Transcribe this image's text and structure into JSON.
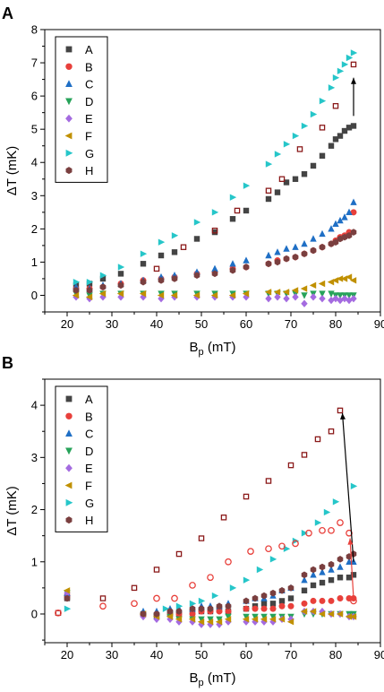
{
  "chart_data": [
    {
      "panel": "A",
      "type": "scatter",
      "xlabel": "B",
      "xlabel_sub": "p",
      "xlabel_unit": " (mT)",
      "ylabel": "ΔT (mK)",
      "xlim": [
        15,
        90
      ],
      "ylim": [
        -0.5,
        8
      ],
      "xticks": [
        20,
        30,
        40,
        50,
        60,
        70,
        80,
        90
      ],
      "yticks": [
        0,
        1,
        2,
        3,
        4,
        5,
        6,
        7,
        8
      ],
      "legend": "top-left",
      "series": [
        {
          "name": "A",
          "marker": "square",
          "color": "#444444",
          "x": [
            22,
            25,
            28,
            32,
            37,
            41,
            44,
            49,
            53,
            57,
            60,
            65,
            67,
            69,
            71,
            73,
            75,
            77,
            79,
            80,
            81,
            82,
            83,
            84
          ],
          "y": [
            0.3,
            0.35,
            0.5,
            0.65,
            0.95,
            1.2,
            1.3,
            1.7,
            1.9,
            2.3,
            2.55,
            2.9,
            3.1,
            3.4,
            3.5,
            3.65,
            3.9,
            4.2,
            4.5,
            4.7,
            4.8,
            4.95,
            5.05,
            5.1
          ]
        },
        {
          "name": "B",
          "marker": "circle",
          "color": "#e8403b",
          "x": [
            22,
            25,
            28,
            32,
            37,
            41,
            44,
            49,
            53,
            57,
            60,
            65,
            67,
            69,
            71,
            73,
            75,
            77,
            79,
            80,
            81,
            82,
            83,
            84
          ],
          "y": [
            0.2,
            0.2,
            0.25,
            0.35,
            0.45,
            0.5,
            0.55,
            0.65,
            0.7,
            0.8,
            0.85,
            0.95,
            1.05,
            1.1,
            1.15,
            1.25,
            1.35,
            1.45,
            1.55,
            1.65,
            1.75,
            1.8,
            1.9,
            2.5
          ]
        },
        {
          "name": "C",
          "marker": "triangle-up",
          "color": "#1f6fc5",
          "x": [
            22,
            25,
            28,
            32,
            37,
            41,
            44,
            49,
            53,
            57,
            60,
            65,
            67,
            69,
            71,
            73,
            75,
            77,
            79,
            80,
            81,
            82,
            83,
            84
          ],
          "y": [
            0.25,
            0.2,
            0.3,
            0.35,
            0.45,
            0.55,
            0.6,
            0.7,
            0.8,
            0.95,
            1.05,
            1.2,
            1.3,
            1.4,
            1.45,
            1.55,
            1.7,
            1.85,
            2.0,
            2.15,
            2.25,
            2.35,
            2.5,
            2.8
          ]
        },
        {
          "name": "D",
          "marker": "triangle-down",
          "color": "#27a35a",
          "x": [
            22,
            25,
            28,
            32,
            37,
            41,
            44,
            49,
            53,
            57,
            60,
            65,
            67,
            69,
            71,
            73,
            75,
            77,
            79,
            80,
            81,
            82,
            83,
            84
          ],
          "y": [
            0.05,
            0.0,
            0.05,
            0.05,
            0.05,
            0.05,
            0.05,
            0.05,
            0.05,
            0.05,
            0.05,
            0.05,
            0.05,
            0.05,
            0.05,
            0.0,
            0.05,
            0.05,
            0.05,
            0.0,
            0.0,
            0.0,
            0.0,
            0.0
          ]
        },
        {
          "name": "E",
          "marker": "diamond",
          "color": "#a46be0",
          "x": [
            22,
            25,
            28,
            32,
            37,
            41,
            44,
            49,
            53,
            57,
            60,
            65,
            67,
            69,
            71,
            73,
            75,
            77,
            79,
            80,
            81,
            82,
            83,
            84
          ],
          "y": [
            -0.05,
            -0.1,
            -0.05,
            -0.05,
            -0.05,
            -0.1,
            -0.05,
            -0.05,
            -0.05,
            -0.05,
            -0.05,
            -0.1,
            -0.05,
            -0.1,
            -0.05,
            -0.25,
            -0.05,
            -0.1,
            -0.15,
            -0.1,
            -0.15,
            -0.1,
            -0.15,
            -0.1
          ]
        },
        {
          "name": "F",
          "marker": "triangle-left",
          "color": "#c09000",
          "x": [
            22,
            25,
            28,
            32,
            37,
            41,
            44,
            49,
            53,
            57,
            60,
            65,
            67,
            69,
            71,
            73,
            75,
            77,
            79,
            80,
            81,
            82,
            83,
            84
          ],
          "y": [
            0.0,
            -0.05,
            0.05,
            0.05,
            0.05,
            0.0,
            0.0,
            0.0,
            0.0,
            0.0,
            0.05,
            0.1,
            0.1,
            0.1,
            0.15,
            0.2,
            0.3,
            0.35,
            0.4,
            0.45,
            0.5,
            0.5,
            0.55,
            0.45
          ]
        },
        {
          "name": "G",
          "marker": "triangle-right",
          "color": "#26c6c9",
          "x": [
            22,
            25,
            28,
            32,
            37,
            41,
            44,
            49,
            53,
            57,
            60,
            65,
            67,
            69,
            71,
            73,
            75,
            77,
            79,
            80,
            81,
            82,
            83,
            84
          ],
          "y": [
            0.4,
            0.4,
            0.6,
            0.85,
            1.25,
            1.6,
            1.8,
            2.2,
            2.5,
            2.95,
            3.3,
            3.95,
            4.25,
            4.55,
            4.8,
            5.1,
            5.45,
            5.85,
            6.25,
            6.55,
            6.75,
            6.95,
            7.15,
            7.3
          ]
        },
        {
          "name": "H",
          "marker": "hexagon",
          "color": "#7a3f3f",
          "x": [
            22,
            25,
            28,
            32,
            37,
            41,
            44,
            49,
            53,
            57,
            60,
            65,
            67,
            69,
            71,
            73,
            75,
            77,
            79,
            80,
            81,
            82,
            83,
            84
          ],
          "y": [
            0.15,
            0.15,
            0.25,
            0.3,
            0.4,
            0.45,
            0.5,
            0.6,
            0.65,
            0.75,
            0.85,
            0.95,
            1.0,
            1.1,
            1.15,
            1.25,
            1.35,
            1.45,
            1.55,
            1.6,
            1.7,
            1.75,
            1.8,
            1.9
          ]
        },
        {
          "name": "",
          "marker": "open-square",
          "color": "#8b1a1a",
          "x": [
            40,
            46,
            53,
            58,
            65,
            68,
            72,
            77,
            80,
            84
          ],
          "y": [
            0.8,
            1.45,
            1.95,
            2.55,
            3.15,
            3.5,
            4.4,
            5.05,
            5.7,
            6.95
          ]
        }
      ],
      "arrows": [
        {
          "x": 84,
          "y_from": 5.4,
          "y_to": 6.55,
          "color": "#000000"
        }
      ]
    },
    {
      "panel": "B",
      "type": "scatter",
      "xlabel": "B",
      "xlabel_sub": "p",
      "xlabel_unit": " (mT)",
      "ylabel": "ΔT (mK)",
      "xlim": [
        15,
        90
      ],
      "ylim": [
        -0.55,
        4.5
      ],
      "xticks": [
        20,
        30,
        40,
        50,
        60,
        70,
        80,
        90
      ],
      "yticks": [
        0,
        1,
        2,
        3,
        4
      ],
      "legend": "top-left",
      "series": [
        {
          "name": "A",
          "marker": "square",
          "color": "#444444",
          "x": [
            20,
            37,
            40,
            43,
            45,
            48,
            50,
            52,
            54,
            56,
            60,
            62,
            64,
            66,
            68,
            70,
            73,
            75,
            77,
            79,
            81,
            83,
            84
          ],
          "y": [
            0.3,
            0.0,
            -0.05,
            0.0,
            0.0,
            0.05,
            0.05,
            0.05,
            0.1,
            0.05,
            0.1,
            0.15,
            0.2,
            0.2,
            0.25,
            0.3,
            0.45,
            0.55,
            0.6,
            0.65,
            0.7,
            0.7,
            0.75
          ]
        },
        {
          "name": "B",
          "marker": "circle",
          "color": "#e8403b",
          "x": [
            20,
            37,
            40,
            43,
            45,
            48,
            50,
            52,
            54,
            56,
            60,
            62,
            64,
            66,
            68,
            70,
            73,
            75,
            77,
            79,
            81,
            83,
            84
          ],
          "y": [
            0.35,
            0.0,
            0.0,
            0.0,
            0.0,
            0.0,
            0.05,
            0.05,
            0.05,
            0.05,
            0.1,
            0.1,
            0.1,
            0.1,
            0.15,
            0.15,
            0.2,
            0.25,
            0.25,
            0.25,
            0.3,
            0.3,
            0.3
          ]
        },
        {
          "name": "C",
          "marker": "triangle-up",
          "color": "#1f6fc5",
          "x": [
            20,
            37,
            40,
            43,
            45,
            48,
            50,
            52,
            54,
            56,
            60,
            62,
            64,
            66,
            68,
            70,
            73,
            75,
            77,
            79,
            81,
            83,
            84
          ],
          "y": [
            0.4,
            0.05,
            0.05,
            0.1,
            0.1,
            0.1,
            0.15,
            0.15,
            0.15,
            0.2,
            0.25,
            0.3,
            0.3,
            0.35,
            0.45,
            0.5,
            0.65,
            0.75,
            0.8,
            0.85,
            0.9,
            1.0,
            1.0
          ]
        },
        {
          "name": "D",
          "marker": "triangle-down",
          "color": "#27a35a",
          "x": [
            20,
            37,
            40,
            43,
            45,
            48,
            50,
            52,
            54,
            56,
            60,
            62,
            64,
            66,
            68,
            70,
            73,
            75,
            77,
            79,
            81,
            83,
            84
          ],
          "y": [
            0.4,
            -0.05,
            -0.05,
            -0.05,
            -0.1,
            -0.1,
            -0.1,
            -0.1,
            -0.1,
            -0.05,
            -0.05,
            -0.05,
            -0.05,
            -0.05,
            -0.05,
            -0.05,
            0.0,
            0.0,
            0.0,
            0.0,
            0.0,
            0.0,
            0.0
          ]
        },
        {
          "name": "E",
          "marker": "diamond",
          "color": "#a46be0",
          "x": [
            20,
            37,
            40,
            43,
            45,
            48,
            50,
            52,
            54,
            56,
            60,
            62,
            64,
            66,
            68,
            70,
            73,
            75,
            77,
            79,
            81,
            83,
            84
          ],
          "y": [
            0.4,
            -0.05,
            -0.1,
            -0.1,
            -0.15,
            -0.15,
            -0.2,
            -0.2,
            -0.2,
            -0.15,
            -0.15,
            -0.15,
            -0.15,
            -0.15,
            -0.1,
            -0.1,
            0.05,
            0.05,
            0.05,
            0.0,
            0.0,
            -0.05,
            -0.05
          ]
        },
        {
          "name": "F",
          "marker": "triangle-left",
          "color": "#c09000",
          "x": [
            20,
            37,
            40,
            43,
            45,
            48,
            50,
            52,
            54,
            56,
            60,
            62,
            64,
            66,
            68,
            70,
            73,
            75,
            77,
            79,
            81,
            83,
            84
          ],
          "y": [
            0.45,
            0.0,
            -0.05,
            -0.05,
            -0.1,
            -0.1,
            -0.15,
            -0.15,
            -0.15,
            -0.1,
            -0.1,
            -0.1,
            -0.1,
            -0.1,
            -0.1,
            -0.15,
            0.05,
            0.05,
            0.0,
            0.0,
            0.0,
            -0.05,
            -0.05
          ]
        },
        {
          "name": "G",
          "marker": "triangle-right",
          "color": "#26c6c9",
          "x": [
            20,
            42,
            45,
            48,
            50,
            53,
            57,
            60,
            63,
            66,
            69,
            71,
            73,
            76,
            78,
            80,
            84
          ],
          "y": [
            0.1,
            0.1,
            0.15,
            0.2,
            0.25,
            0.35,
            0.5,
            0.65,
            0.85,
            1.05,
            1.25,
            1.4,
            1.55,
            1.75,
            1.95,
            2.15,
            2.45
          ]
        },
        {
          "name": "H",
          "marker": "hexagon",
          "color": "#7a3f3f",
          "x": [
            20,
            37,
            40,
            43,
            45,
            48,
            50,
            52,
            54,
            56,
            60,
            62,
            64,
            66,
            68,
            70,
            73,
            75,
            77,
            79,
            81,
            83,
            84
          ],
          "y": [
            0.3,
            0.0,
            0.0,
            0.05,
            0.05,
            0.1,
            0.1,
            0.1,
            0.15,
            0.15,
            0.25,
            0.3,
            0.35,
            0.4,
            0.45,
            0.5,
            0.75,
            0.85,
            0.9,
            0.95,
            1.05,
            1.1,
            1.15
          ]
        },
        {
          "name": "",
          "marker": "open-square",
          "color": "#8b1a1a",
          "x": [
            18,
            28,
            35,
            40,
            45,
            50,
            55,
            60,
            65,
            70,
            73,
            76,
            79,
            81
          ],
          "y": [
            0.02,
            0.3,
            0.5,
            0.85,
            1.15,
            1.45,
            1.85,
            2.25,
            2.55,
            2.85,
            3.05,
            3.35,
            3.5,
            3.9
          ]
        },
        {
          "name": "",
          "marker": "open-circle",
          "color": "#e8403b",
          "x": [
            18,
            28,
            35,
            40,
            44,
            48,
            52,
            56,
            61,
            65,
            68,
            71,
            74,
            77,
            79,
            81,
            83,
            84
          ],
          "y": [
            0.02,
            0.15,
            0.2,
            0.3,
            0.3,
            0.55,
            0.7,
            1.0,
            1.2,
            1.25,
            1.3,
            1.35,
            1.55,
            1.6,
            1.6,
            1.75,
            1.55,
            0.25
          ]
        }
      ],
      "arrows": [
        {
          "x_from": 84,
          "y_from": 1.0,
          "x_to": 81.5,
          "y_to": 3.85,
          "color": "#000000"
        },
        {
          "x_from": 84,
          "y_from": 0.3,
          "x_to": 83.2,
          "y_to": 1.45,
          "color": "#e8403b"
        }
      ]
    }
  ]
}
